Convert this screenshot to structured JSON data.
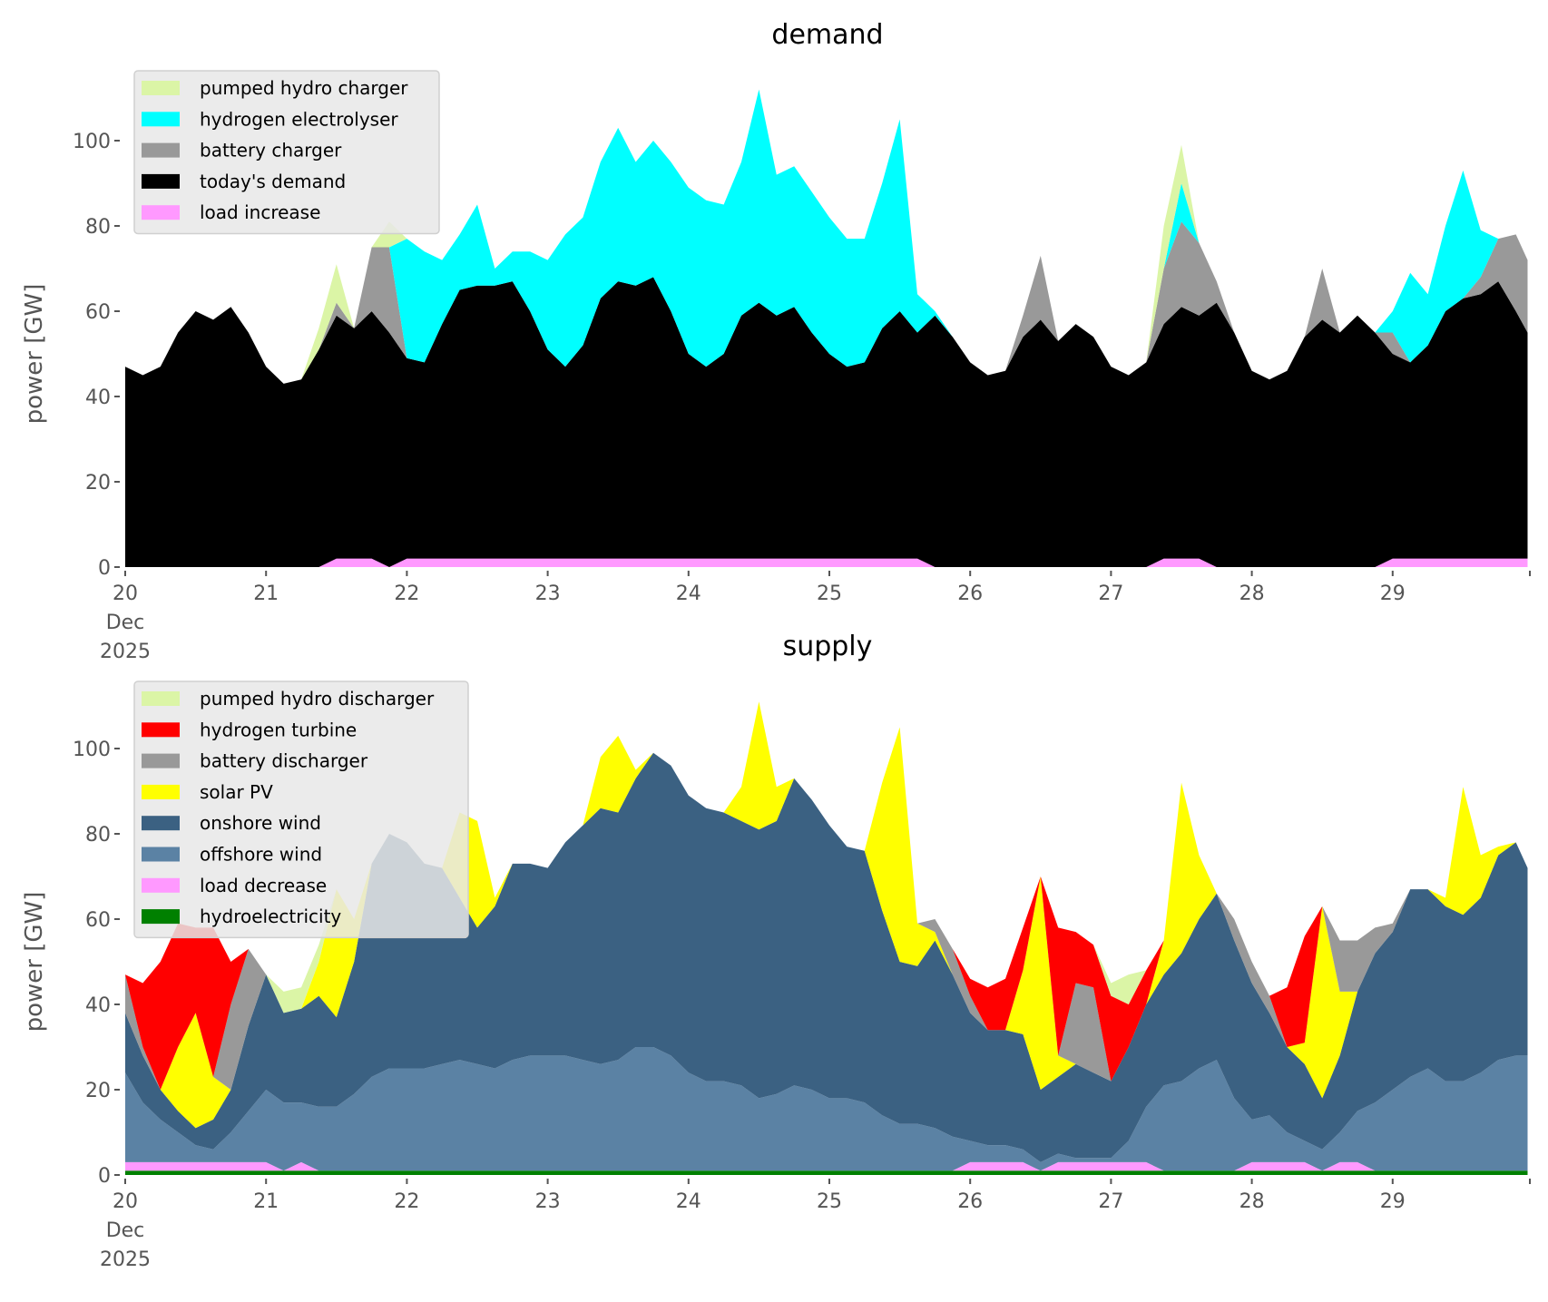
{
  "chart_data": [
    {
      "type": "area",
      "stacked": true,
      "title": "demand",
      "ylabel": "power [GW]",
      "ylim": [
        0,
        115
      ],
      "yticks": [
        "0",
        "20",
        "40",
        "60",
        "80",
        "100"
      ],
      "xticks": [
        "20",
        "21",
        "22",
        "23",
        "24",
        "25",
        "26",
        "27",
        "28",
        "29"
      ],
      "xtick_sub": [
        "Dec",
        "2025"
      ],
      "grid": false,
      "legend_position": "top-left",
      "x_start": "2025-12-20 00:00",
      "x_step_hours": 3,
      "x_end": "2025-12-29 23:00",
      "series": [
        {
          "name": "today's demand",
          "color": "#000000",
          "values": [
            47,
            45,
            47,
            55,
            60,
            58,
            61,
            55,
            47,
            43,
            44,
            51,
            59,
            56,
            60,
            55,
            49,
            48,
            57,
            65,
            66,
            66,
            67,
            60,
            51,
            47,
            52,
            63,
            67,
            66,
            68,
            60,
            50,
            47,
            50,
            59,
            62,
            59,
            61,
            55,
            50,
            47,
            48,
            56,
            60,
            55,
            59,
            54,
            48,
            45,
            46,
            54,
            58,
            53,
            57,
            54,
            47,
            45,
            48,
            57,
            61,
            59,
            62,
            55,
            46,
            44,
            46,
            54,
            58,
            55,
            59,
            55,
            50,
            48,
            52,
            60,
            63,
            64,
            67,
            60,
            55
          ]
        },
        {
          "name": "battery charger",
          "color": "#999999",
          "values": [
            0,
            0,
            0,
            0,
            0,
            0,
            0,
            0,
            0,
            0,
            0,
            0,
            3,
            0,
            15,
            20,
            0,
            0,
            0,
            0,
            0,
            0,
            0,
            0,
            0,
            0,
            0,
            0,
            0,
            0,
            0,
            0,
            0,
            0,
            0,
            0,
            0,
            0,
            0,
            0,
            0,
            0,
            0,
            0,
            0,
            0,
            0,
            0,
            0,
            0,
            0,
            5,
            15,
            0,
            0,
            0,
            0,
            0,
            0,
            13,
            20,
            17,
            5,
            0,
            0,
            0,
            0,
            0,
            12,
            0,
            0,
            0,
            5,
            0,
            0,
            0,
            0,
            4,
            10,
            18,
            17
          ]
        },
        {
          "name": "hydrogen electrolyser",
          "color": "#00ffff",
          "values": [
            0,
            0,
            0,
            0,
            0,
            0,
            0,
            0,
            0,
            0,
            0,
            0,
            0,
            0,
            0,
            0,
            28,
            26,
            15,
            13,
            19,
            4,
            7,
            14,
            21,
            31,
            30,
            32,
            36,
            29,
            32,
            35,
            39,
            39,
            35,
            36,
            50,
            33,
            33,
            33,
            32,
            30,
            29,
            34,
            45,
            9,
            1,
            0,
            0,
            0,
            0,
            0,
            0,
            0,
            0,
            0,
            0,
            0,
            0,
            0,
            9,
            0,
            0,
            0,
            0,
            0,
            0,
            0,
            0,
            0,
            0,
            0,
            5,
            21,
            12,
            20,
            30,
            11,
            0,
            0,
            0
          ]
        },
        {
          "name": "pumped hydro charger",
          "color": "#dbf5a6",
          "values": [
            0,
            0,
            0,
            0,
            0,
            0,
            0,
            0,
            0,
            0,
            0,
            5,
            9,
            0,
            0,
            6,
            0,
            0,
            0,
            0,
            0,
            0,
            0,
            0,
            0,
            0,
            0,
            0,
            0,
            0,
            0,
            0,
            0,
            0,
            0,
            0,
            0,
            0,
            0,
            0,
            0,
            0,
            0,
            0,
            0,
            0,
            0,
            0,
            0,
            0,
            0,
            0,
            0,
            0,
            0,
            0,
            0,
            0,
            0,
            10,
            9,
            0,
            0,
            0,
            0,
            0,
            0,
            0,
            0,
            0,
            0,
            0,
            0,
            0,
            0,
            0,
            0,
            0,
            0,
            0,
            0
          ]
        },
        {
          "name": "load increase",
          "color": "#ff99ff",
          "overlay": true,
          "values": [
            0,
            0,
            0,
            0,
            0,
            0,
            0,
            0,
            0,
            0,
            0,
            0,
            2,
            2,
            2,
            0,
            2,
            2,
            2,
            2,
            2,
            2,
            2,
            2,
            2,
            2,
            2,
            2,
            2,
            2,
            2,
            2,
            2,
            2,
            2,
            2,
            2,
            2,
            2,
            2,
            2,
            2,
            2,
            2,
            2,
            2,
            0,
            0,
            0,
            0,
            0,
            0,
            0,
            0,
            0,
            0,
            0,
            0,
            0,
            2,
            2,
            2,
            0,
            0,
            0,
            0,
            0,
            0,
            0,
            0,
            0,
            0,
            2,
            2,
            2,
            2,
            2,
            2,
            2,
            2,
            2
          ]
        }
      ],
      "legend_order": [
        "pumped hydro charger",
        "hydrogen electrolyser",
        "battery charger",
        "today's demand",
        "load increase"
      ]
    },
    {
      "type": "area",
      "stacked": true,
      "title": "supply",
      "ylabel": "power [GW]",
      "ylim": [
        0,
        115
      ],
      "yticks": [
        "0",
        "20",
        "40",
        "60",
        "80",
        "100"
      ],
      "xticks": [
        "20",
        "21",
        "22",
        "23",
        "24",
        "25",
        "26",
        "27",
        "28",
        "29"
      ],
      "xtick_sub": [
        "Dec",
        "2025"
      ],
      "grid": false,
      "legend_position": "top-left",
      "x_start": "2025-12-20 00:00",
      "x_step_hours": 3,
      "x_end": "2025-12-29 23:00",
      "series": [
        {
          "name": "hydroelectricity",
          "color": "#008000",
          "values": [
            1,
            1,
            1,
            1,
            1,
            1,
            1,
            1,
            1,
            1,
            1,
            1,
            1,
            1,
            1,
            1,
            1,
            1,
            1,
            1,
            1,
            1,
            1,
            1,
            1,
            1,
            1,
            1,
            1,
            1,
            1,
            1,
            1,
            1,
            1,
            1,
            1,
            1,
            1,
            1,
            1,
            1,
            1,
            1,
            1,
            1,
            1,
            1,
            1,
            1,
            1,
            1,
            1,
            1,
            1,
            1,
            1,
            1,
            1,
            1,
            1,
            1,
            1,
            1,
            1,
            1,
            1,
            1,
            1,
            1,
            1,
            1,
            1,
            1,
            1,
            1,
            1,
            1,
            1,
            1,
            1
          ]
        },
        {
          "name": "load decrease",
          "color": "#ff99ff",
          "values": [
            2,
            2,
            2,
            2,
            2,
            2,
            2,
            2,
            2,
            0,
            2,
            0,
            0,
            0,
            0,
            0,
            0,
            0,
            0,
            0,
            0,
            0,
            0,
            0,
            0,
            0,
            0,
            0,
            0,
            0,
            0,
            0,
            0,
            0,
            0,
            0,
            0,
            0,
            0,
            0,
            0,
            0,
            0,
            0,
            0,
            0,
            0,
            0,
            2,
            2,
            2,
            2,
            0,
            2,
            2,
            2,
            2,
            2,
            2,
            0,
            0,
            0,
            0,
            0,
            2,
            2,
            2,
            2,
            0,
            2,
            2,
            0,
            0,
            0,
            0,
            0,
            0,
            0,
            0,
            0,
            0
          ]
        },
        {
          "name": "offshore wind",
          "color": "#5b82a4",
          "values": [
            21,
            14,
            10,
            7,
            4,
            3,
            7,
            12,
            17,
            16,
            14,
            15,
            15,
            18,
            22,
            24,
            24,
            24,
            25,
            26,
            25,
            24,
            26,
            27,
            27,
            27,
            26,
            25,
            26,
            29,
            29,
            27,
            23,
            21,
            21,
            20,
            17,
            18,
            20,
            19,
            17,
            17,
            16,
            13,
            11,
            11,
            10,
            8,
            5,
            4,
            4,
            3,
            2,
            2,
            1,
            1,
            1,
            5,
            13,
            20,
            21,
            24,
            26,
            17,
            10,
            11,
            7,
            5,
            5,
            7,
            12,
            16,
            19,
            22,
            24,
            21,
            21,
            23,
            26,
            27,
            27
          ]
        },
        {
          "name": "onshore wind",
          "color": "#3b6182",
          "values": [
            14,
            11,
            7,
            5,
            4,
            7,
            10,
            20,
            27,
            21,
            22,
            26,
            21,
            31,
            50,
            55,
            53,
            48,
            46,
            38,
            32,
            38,
            46,
            45,
            44,
            50,
            55,
            60,
            58,
            63,
            69,
            68,
            65,
            64,
            63,
            62,
            63,
            64,
            72,
            68,
            64,
            59,
            59,
            48,
            38,
            37,
            44,
            38,
            30,
            27,
            27,
            27,
            17,
            18,
            22,
            20,
            18,
            22,
            24,
            26,
            30,
            35,
            39,
            37,
            32,
            24,
            20,
            18,
            12,
            18,
            28,
            35,
            37,
            44,
            42,
            41,
            39,
            41,
            48,
            50,
            44
          ]
        },
        {
          "name": "solar PV",
          "color": "#ffff00",
          "values": [
            0,
            0,
            0,
            15,
            27,
            10,
            0,
            0,
            0,
            0,
            0,
            8,
            30,
            10,
            0,
            0,
            0,
            0,
            0,
            20,
            25,
            2,
            0,
            0,
            0,
            0,
            0,
            12,
            18,
            2,
            0,
            0,
            0,
            0,
            0,
            8,
            30,
            8,
            0,
            0,
            0,
            0,
            0,
            30,
            55,
            10,
            2,
            0,
            0,
            0,
            0,
            15,
            50,
            5,
            0,
            0,
            0,
            0,
            0,
            8,
            40,
            15,
            0,
            0,
            0,
            0,
            0,
            5,
            45,
            15,
            0,
            0,
            0,
            0,
            0,
            2,
            30,
            10,
            2,
            0,
            0
          ]
        },
        {
          "name": "battery discharger",
          "color": "#999999",
          "values": [
            9,
            2,
            0,
            0,
            0,
            0,
            20,
            18,
            0,
            0,
            0,
            0,
            0,
            0,
            0,
            0,
            0,
            0,
            0,
            0,
            0,
            0,
            0,
            0,
            0,
            0,
            0,
            0,
            0,
            0,
            0,
            0,
            0,
            0,
            0,
            0,
            0,
            0,
            0,
            0,
            0,
            0,
            0,
            0,
            0,
            0,
            3,
            6,
            4,
            0,
            0,
            0,
            0,
            0,
            19,
            20,
            0,
            0,
            0,
            0,
            0,
            0,
            0,
            5,
            5,
            4,
            0,
            0,
            0,
            12,
            12,
            6,
            2,
            0,
            0,
            0,
            0,
            0,
            0,
            0,
            0
          ]
        },
        {
          "name": "hydrogen turbine",
          "color": "#ff0000",
          "values": [
            0,
            15,
            30,
            29,
            20,
            35,
            10,
            0,
            0,
            0,
            0,
            0,
            0,
            0,
            0,
            0,
            0,
            0,
            0,
            0,
            0,
            0,
            0,
            0,
            0,
            0,
            0,
            0,
            0,
            0,
            0,
            0,
            0,
            0,
            0,
            0,
            0,
            0,
            0,
            0,
            0,
            0,
            0,
            0,
            0,
            0,
            0,
            0,
            4,
            10,
            12,
            10,
            0,
            30,
            12,
            10,
            20,
            10,
            8,
            0,
            0,
            0,
            0,
            0,
            0,
            0,
            14,
            25,
            0,
            0,
            0,
            0,
            0,
            0,
            0,
            0,
            0,
            0,
            0,
            0,
            0
          ]
        },
        {
          "name": "pumped hydro discharger",
          "color": "#dbf5a6",
          "values": [
            0,
            0,
            0,
            0,
            0,
            0,
            0,
            0,
            0,
            5,
            5,
            4,
            0,
            0,
            0,
            0,
            0,
            0,
            0,
            0,
            0,
            0,
            0,
            0,
            0,
            0,
            0,
            0,
            0,
            0,
            0,
            0,
            0,
            0,
            0,
            0,
            0,
            0,
            0,
            0,
            0,
            0,
            0,
            0,
            0,
            0,
            0,
            0,
            0,
            0,
            0,
            0,
            0,
            0,
            0,
            0,
            3,
            7,
            0,
            0,
            0,
            0,
            0,
            0,
            0,
            0,
            0,
            0,
            0,
            0,
            0,
            0,
            0,
            0,
            0,
            0,
            0,
            0,
            0,
            0,
            0
          ]
        }
      ],
      "legend_order": [
        "pumped hydro discharger",
        "hydrogen turbine",
        "battery discharger",
        "solar PV",
        "onshore wind",
        "offshore wind",
        "load decrease",
        "hydroelectricity"
      ]
    }
  ]
}
